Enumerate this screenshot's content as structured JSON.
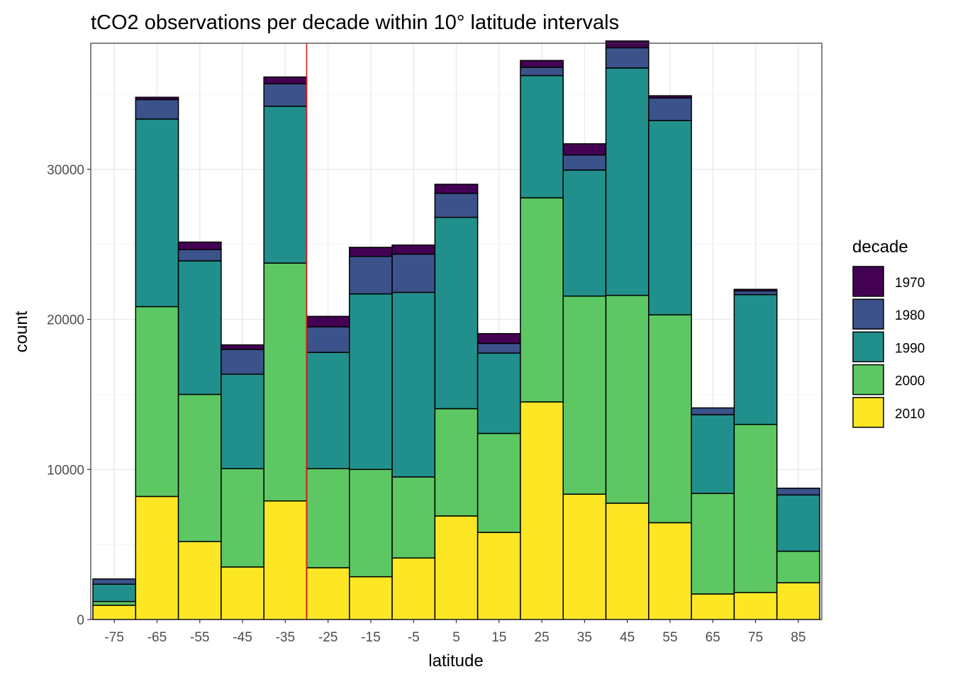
{
  "colors": {
    "1970": "#440154",
    "1980": "#3B528B",
    "1990": "#21908C",
    "2000": "#5DC863",
    "2010": "#FDE725",
    "grid_major": "#EBEBEB",
    "grid_minor": "#F4F4F4",
    "panel_border": "#333333",
    "bar_outline": "#000000",
    "axis_text": "#4D4D4D",
    "reference_line": "#E41A1C"
  },
  "chart_data": {
    "type": "bar",
    "stacked": true,
    "title": "tCO2 observations per decade within 10° latitude intervals",
    "xlabel": "latitude",
    "ylabel": "count",
    "categories": [
      "-75",
      "-65",
      "-55",
      "-45",
      "-35",
      "-25",
      "-15",
      "-5",
      "5",
      "15",
      "25",
      "35",
      "45",
      "55",
      "65",
      "75",
      "85"
    ],
    "x_center_values": [
      -75,
      -65,
      -55,
      -45,
      -35,
      -25,
      -15,
      -5,
      5,
      15,
      25,
      35,
      45,
      55,
      65,
      75,
      85
    ],
    "ylim": [
      0,
      38400
    ],
    "yticks": [
      0,
      10000,
      20000,
      30000
    ],
    "ytick_labels": [
      "0",
      "10000",
      "20000",
      "30000"
    ],
    "grid": true,
    "legend_title": "decade",
    "legend_position": "right",
    "reference_line_x": -30,
    "stack_order_bottom_to_top": [
      "2010",
      "2000",
      "1990",
      "1980",
      "1970"
    ],
    "series": [
      {
        "name": "2010",
        "values": [
          950,
          8200,
          5200,
          3500,
          7900,
          3450,
          2850,
          4100,
          6900,
          5800,
          14500,
          8350,
          7750,
          6450,
          1700,
          1800,
          2450
        ]
      },
      {
        "name": "2000",
        "values": [
          250,
          12650,
          9800,
          6550,
          15850,
          6600,
          7150,
          5400,
          7150,
          6600,
          13600,
          13200,
          13850,
          13850,
          6700,
          11200,
          2100
        ]
      },
      {
        "name": "1990",
        "values": [
          1150,
          12500,
          8900,
          6300,
          10450,
          7750,
          11700,
          12300,
          12750,
          5350,
          8150,
          8400,
          15150,
          12950,
          5250,
          8650,
          3750
        ]
      },
      {
        "name": "1980",
        "values": [
          350,
          1300,
          750,
          1650,
          1500,
          1700,
          2500,
          2550,
          1600,
          650,
          550,
          1000,
          1350,
          1500,
          450,
          250,
          450
        ]
      },
      {
        "name": "1970",
        "values": [
          0,
          150,
          500,
          300,
          450,
          700,
          600,
          600,
          600,
          650,
          450,
          750,
          450,
          150,
          0,
          100,
          0
        ]
      }
    ]
  }
}
